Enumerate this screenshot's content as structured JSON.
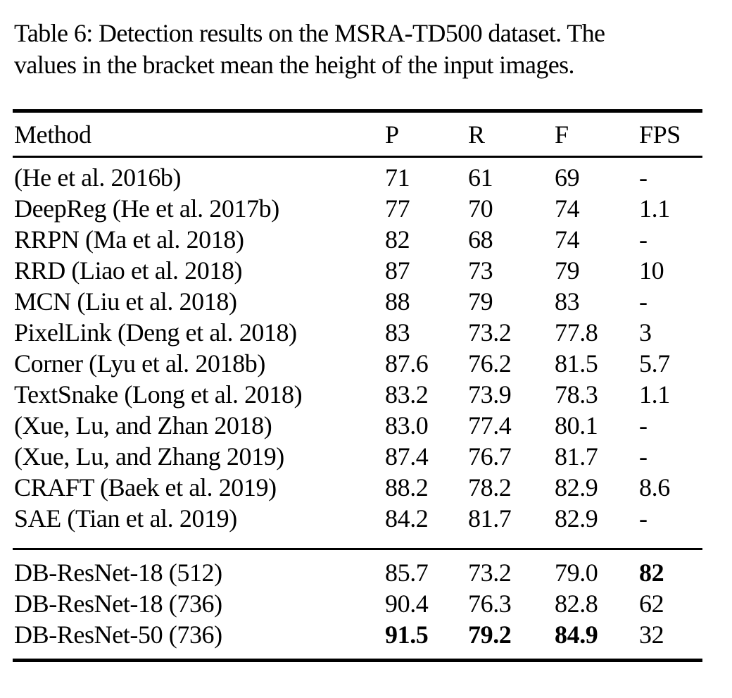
{
  "caption": {
    "lines": [
      "Table 6: Detection results on the MSRA-TD500 dataset. The",
      "values in the bracket mean the height of the input images."
    ]
  },
  "table": {
    "columns": [
      "Method",
      "P",
      "R",
      "F",
      "FPS"
    ],
    "sections": [
      {
        "rows": [
          {
            "method": "(He et al. 2016b)",
            "p": "71",
            "r": "61",
            "f": "69",
            "fps": "-"
          },
          {
            "method": "DeepReg (He et al. 2017b)",
            "p": "77",
            "r": "70",
            "f": "74",
            "fps": "1.1"
          },
          {
            "method": "RRPN (Ma et al. 2018)",
            "p": "82",
            "r": "68",
            "f": "74",
            "fps": "-"
          },
          {
            "method": "RRD (Liao et al. 2018)",
            "p": "87",
            "r": "73",
            "f": "79",
            "fps": "10"
          },
          {
            "method": "MCN (Liu et al. 2018)",
            "p": "88",
            "r": "79",
            "f": "83",
            "fps": "-"
          },
          {
            "method": "PixelLink (Deng et al. 2018)",
            "p": "83",
            "r": "73.2",
            "f": "77.8",
            "fps": "3"
          },
          {
            "method": "Corner (Lyu et al. 2018b)",
            "p": "87.6",
            "r": "76.2",
            "f": "81.5",
            "fps": "5.7"
          },
          {
            "method": "TextSnake (Long et al. 2018)",
            "p": "83.2",
            "r": "73.9",
            "f": "78.3",
            "fps": "1.1"
          },
          {
            "method": "(Xue, Lu, and Zhan 2018)",
            "p": "83.0",
            "r": "77.4",
            "f": "80.1",
            "fps": "-"
          },
          {
            "method": "(Xue, Lu, and Zhang 2019)",
            "p": "87.4",
            "r": "76.7",
            "f": "81.7",
            "fps": "-"
          },
          {
            "method": "CRAFT (Baek et al. 2019)",
            "p": "88.2",
            "r": "78.2",
            "f": "82.9",
            "fps": "8.6"
          },
          {
            "method": "SAE (Tian et al. 2019)",
            "p": "84.2",
            "r": "81.7",
            "f": "82.9",
            "fps": "-"
          }
        ]
      },
      {
        "rows": [
          {
            "method": "DB-ResNet-18 (512)",
            "p": "85.7",
            "r": "73.2",
            "f": "79.0",
            "fps": "82"
          },
          {
            "method": "DB-ResNet-18 (736)",
            "p": "90.4",
            "r": "76.3",
            "f": "82.8",
            "fps": "62"
          },
          {
            "method": "DB-ResNet-50 (736)",
            "p": "91.5",
            "r": "79.2",
            "f": "84.9",
            "fps": "32"
          }
        ]
      }
    ]
  }
}
